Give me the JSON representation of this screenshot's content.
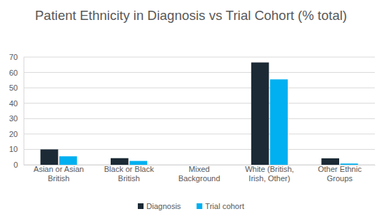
{
  "chart_data": {
    "type": "bar",
    "title": "Patient Ethnicity in Diagnosis vs Trial Cohort (% total)",
    "categories": [
      "Asian or Asian British",
      "Black or Black British",
      "Mixed Background",
      "White (British, Irish, Other)",
      "Other Ethnic Groups"
    ],
    "series": [
      {
        "name": "Diagnosis",
        "color": "#1b2a35",
        "values": [
          10,
          4.3,
          0,
          66.5,
          4.2
        ]
      },
      {
        "name": "Trial cohort",
        "color": "#00b0f0",
        "values": [
          5.5,
          2.5,
          0,
          55.5,
          0.8
        ]
      }
    ],
    "ylim": [
      0,
      70
    ],
    "yticks": [
      0,
      10,
      20,
      30,
      40,
      50,
      60,
      70
    ],
    "grid": true,
    "legend": "bottom"
  }
}
